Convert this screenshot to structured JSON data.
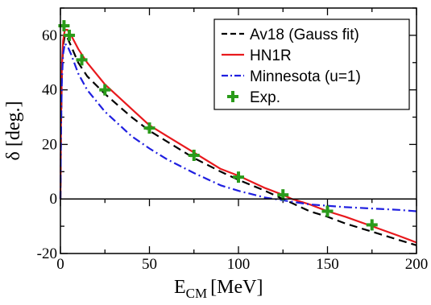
{
  "chart_data": {
    "type": "line",
    "xlabel": "E",
    "xlabel_sub": "CM",
    "xlabel_unit": "[MeV]",
    "ylabel": "δ [deg.]",
    "xlim": [
      0,
      200
    ],
    "ylim": [
      -20,
      70
    ],
    "x_ticks": [
      0,
      50,
      100,
      150,
      200
    ],
    "x_tick_labels": [
      "0",
      "50",
      "100",
      "150",
      "200"
    ],
    "y_ticks": [
      -20,
      0,
      20,
      40,
      60
    ],
    "y_tick_labels": [
      "-20",
      "0",
      "20",
      "40",
      "60"
    ],
    "zero_line": true,
    "grid": false,
    "legend_position": "top-right",
    "series": [
      {
        "name": "Av18 (Gauss fit)",
        "color": "#000000",
        "style": "dashed",
        "x": [
          0,
          0.3,
          0.8,
          1.5,
          2.5,
          4,
          6,
          10,
          15,
          25,
          40,
          50,
          60,
          75,
          90,
          100,
          115,
          125,
          140,
          150,
          160,
          175,
          190,
          200
        ],
        "y": [
          0,
          25,
          45,
          56,
          60,
          59,
          56,
          50,
          45,
          38.5,
          30,
          25,
          21,
          15,
          10,
          7,
          3,
          0,
          -4.5,
          -6.5,
          -9,
          -12,
          -15,
          -17
        ]
      },
      {
        "name": "HN1R",
        "color": "#e8191d",
        "style": "solid",
        "x": [
          0,
          0.3,
          0.8,
          1.5,
          2.5,
          4,
          6,
          10,
          15,
          25,
          40,
          50,
          60,
          75,
          90,
          100,
          115,
          125,
          130,
          140,
          150,
          160,
          175,
          190,
          200
        ],
        "y": [
          0,
          28,
          48,
          58,
          62,
          62,
          60,
          55,
          50,
          42,
          33,
          27,
          23,
          17,
          11,
          8.5,
          4,
          1.5,
          0,
          -2,
          -4.5,
          -6.5,
          -10,
          -13.5,
          -16
        ]
      },
      {
        "name": "Minnesota (u=1)",
        "color": "#1f1fe0",
        "style": "dashdot",
        "x": [
          0,
          0.3,
          0.8,
          1.5,
          2.5,
          4,
          6,
          10,
          15,
          25,
          40,
          50,
          60,
          75,
          90,
          100,
          115,
          125,
          140,
          150,
          160,
          175,
          190,
          200
        ],
        "y": [
          0,
          24,
          43,
          53,
          57,
          56,
          53,
          46,
          40,
          32,
          23,
          18.5,
          14.5,
          9.5,
          5,
          3,
          0.5,
          -0.5,
          -2,
          -2.5,
          -3,
          -3.5,
          -4,
          -4.5
        ]
      }
    ],
    "experimental": {
      "name": "Exp.",
      "color": "#2a9b1a",
      "marker": "plus",
      "x": [
        2,
        5,
        12,
        25,
        50,
        75,
        100,
        125,
        150,
        175
      ],
      "y": [
        63.5,
        60,
        51,
        40,
        26,
        16,
        8,
        1.5,
        -4.5,
        -9.5
      ]
    }
  }
}
